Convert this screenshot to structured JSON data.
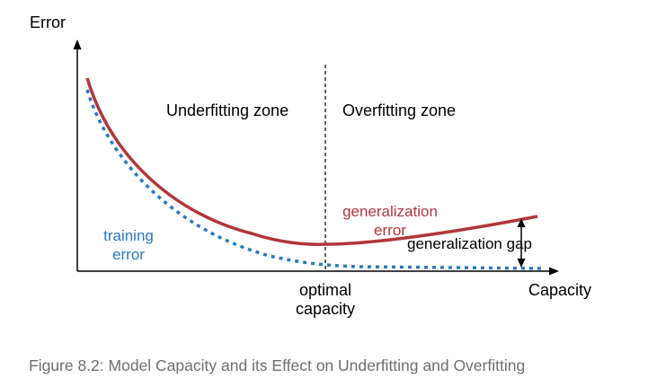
{
  "chart_data": {
    "type": "line",
    "ylabel": "Error",
    "xlabel": "Capacity",
    "series": [
      {
        "name": "training error",
        "style": "dashed",
        "color": "#2b78bd"
      },
      {
        "name": "generalization error",
        "style": "solid",
        "color": "#b0363b"
      }
    ],
    "zones": {
      "left": "Underfitting zone",
      "right": "Overfitting zone"
    },
    "marker_label": [
      "optimal",
      "capacity"
    ],
    "training_label": [
      "training",
      "error"
    ],
    "generalization_label": [
      "generalization",
      "error"
    ],
    "gap_label": "generalization gap",
    "grid": false
  },
  "caption": "Figure 8.2: Model Capacity and its Effect on Underfitting and Overfitting",
  "colors": {
    "axis": "#000000",
    "training": "#2b78bd",
    "generalization": "#b0363b",
    "caption": "#6f6f6f"
  }
}
